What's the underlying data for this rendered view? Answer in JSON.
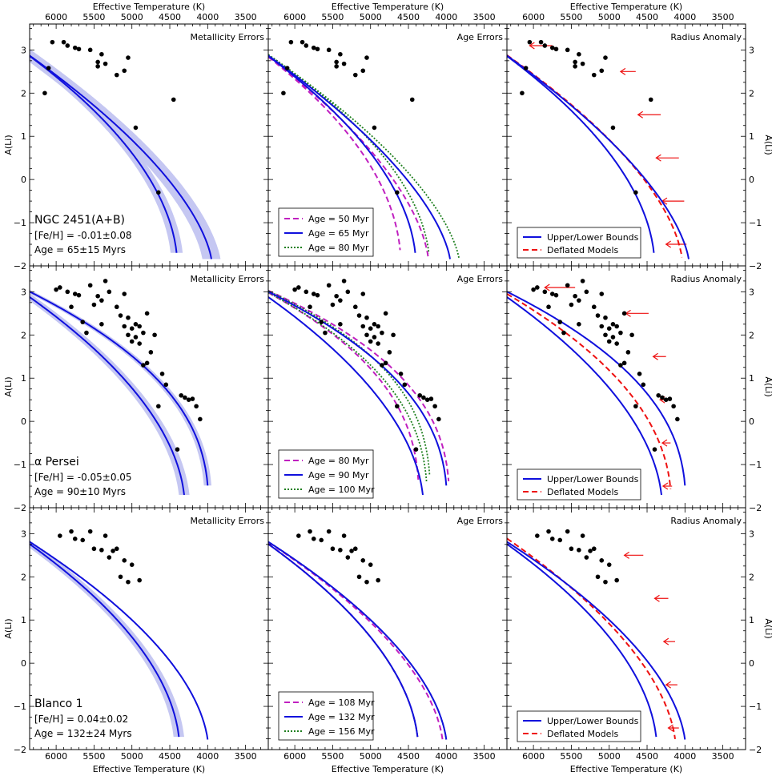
{
  "chart_data": {
    "type": "line",
    "xlabel": "Effective Temperature (K)",
    "ylabel": "A(Li)",
    "xlim": [
      6350,
      3200
    ],
    "ylim": [
      -2,
      3.6
    ],
    "xticks": [
      6000,
      5500,
      5000,
      4500,
      4000,
      3500
    ],
    "yticks": [
      -2,
      -1,
      0,
      1,
      2,
      3
    ],
    "column_titles": [
      "Metallicity Errors",
      "Age Errors",
      "Radius Anomaly"
    ],
    "colors": {
      "band": "#c5c7f2",
      "blue": "#1010dd",
      "magenta": "#c020c0",
      "green": "#208020",
      "red": "#ee1111"
    },
    "legend_radius": [
      "Upper/Lower Bounds",
      "Deflated Models"
    ],
    "clusters": [
      {
        "name": "NGC 2451(A+B)",
        "feh": "[Fe/H] = -0.01±0.08",
        "age": "Age = 65±15 Myrs",
        "ages": [
          "Age = 50 Myr",
          "Age = 65 Myr",
          "Age = 80 Myr"
        ],
        "stars": [
          [
            6150,
            2.0
          ],
          [
            6100,
            2.58
          ],
          [
            6050,
            3.18
          ],
          [
            5900,
            3.18
          ],
          [
            5850,
            3.1
          ],
          [
            5750,
            3.05
          ],
          [
            5700,
            3.02
          ],
          [
            5550,
            3.0
          ],
          [
            5450,
            2.62
          ],
          [
            5450,
            2.72
          ],
          [
            5400,
            2.9
          ],
          [
            5350,
            2.68
          ],
          [
            5200,
            2.42
          ],
          [
            5100,
            2.52
          ],
          [
            5050,
            2.82
          ],
          [
            4950,
            1.2
          ],
          [
            4650,
            -0.3
          ],
          [
            4450,
            1.85
          ]
        ],
        "hot": {
          "T0": 4400,
          "Tm": 6700,
          "Amax": 3.3,
          "p": 1.9,
          "Ts": 2400,
          "Asat": 3.3,
          "w": 80
        },
        "cool": {
          "T0": 3940,
          "Tm": 6700,
          "Amax": 3.3,
          "p": 1.6,
          "Ts": 4600,
          "Asat": 3.3,
          "w": 120
        },
        "hotA": {
          "T0": 4600,
          "Tm": 6700,
          "Amax": 3.3,
          "p": 2.0,
          "Ts": 2300,
          "Asat": 3.3
        },
        "coolA": {
          "T0": 4230,
          "Tm": 6700,
          "Amax": 3.3,
          "p": 1.7,
          "Ts": 2300,
          "Asat": 3.3
        },
        "hotC": {
          "T0": 4220,
          "Tm": 6700,
          "Amax": 3.3,
          "p": 1.9,
          "Ts": 2400,
          "Asat": 3.3
        },
        "coolC": {
          "T0": 3820,
          "Tm": 6700,
          "Amax": 3.3,
          "p": 1.6,
          "Ts": 4600,
          "Asat": 3.3
        },
        "deflated": {
          "T0": 4030,
          "Tm": 6700,
          "Amax": 3.3,
          "p": 1.7,
          "Ts": 2200,
          "Asat": 3.3
        },
        "arrows": [
          [
            3.1,
            5750,
            6050
          ],
          [
            2.5,
            4650,
            4850
          ],
          [
            1.5,
            4320,
            4620
          ],
          [
            0.5,
            4080,
            4380
          ],
          [
            -0.5,
            4010,
            4300
          ],
          [
            -1.5,
            3980,
            4250
          ]
        ]
      },
      {
        "name": "α Persei",
        "feh": "[Fe/H] = -0.05±0.05",
        "age": "Age = 90±10 Myrs",
        "ages": [
          "Age = 80 Myr",
          "Age = 90 Myr",
          "Age = 100 Myr"
        ],
        "stars": [
          [
            6000,
            3.05
          ],
          [
            5950,
            3.1
          ],
          [
            5850,
            3.0
          ],
          [
            5800,
            2.65
          ],
          [
            5750,
            2.95
          ],
          [
            5700,
            2.92
          ],
          [
            5650,
            2.3
          ],
          [
            5600,
            2.05
          ],
          [
            5550,
            3.15
          ],
          [
            5500,
            2.7
          ],
          [
            5450,
            2.9
          ],
          [
            5400,
            2.25
          ],
          [
            5400,
            2.8
          ],
          [
            5350,
            3.25
          ],
          [
            5300,
            3.0
          ],
          [
            5200,
            2.65
          ],
          [
            5150,
            2.45
          ],
          [
            5100,
            2.95
          ],
          [
            5100,
            2.2
          ],
          [
            5050,
            2.0
          ],
          [
            5050,
            2.4
          ],
          [
            5000,
            2.15
          ],
          [
            5000,
            1.85
          ],
          [
            4950,
            2.25
          ],
          [
            4950,
            1.95
          ],
          [
            4900,
            2.2
          ],
          [
            4900,
            1.8
          ],
          [
            4850,
            1.3
          ],
          [
            4850,
            2.05
          ],
          [
            4800,
            1.35
          ],
          [
            4800,
            2.5
          ],
          [
            4750,
            1.6
          ],
          [
            4700,
            2.0
          ],
          [
            4650,
            0.35
          ],
          [
            4600,
            1.1
          ],
          [
            4550,
            0.85
          ],
          [
            4400,
            -0.65
          ],
          [
            4350,
            0.6
          ],
          [
            4300,
            0.55
          ],
          [
            4250,
            0.5
          ],
          [
            4200,
            0.52
          ],
          [
            4150,
            0.35
          ],
          [
            4100,
            0.05
          ]
        ],
        "hot": {
          "T0": 4300,
          "Tm": 6700,
          "Amax": 3.3,
          "p": 1.9,
          "Ts": 2800,
          "Asat": 3.3,
          "w": 70
        },
        "cool": {
          "T0": 3990,
          "Tm": 6700,
          "Amax": 3.3,
          "p": 2.4,
          "Ts": 5000,
          "Asat": 3.3,
          "w": 50
        },
        "hotA": {
          "T0": 4360,
          "Tm": 6700,
          "Amax": 3.3,
          "p": 2.6,
          "Ts": 2800,
          "Asat": 3.3
        },
        "coolA": {
          "T0": 3960,
          "Tm": 6700,
          "Amax": 3.3,
          "p": 2.6,
          "Ts": 5000,
          "Asat": 3.3
        },
        "hotC": {
          "T0": 4250,
          "Tm": 6700,
          "Amax": 3.3,
          "p": 2.5,
          "Ts": 2800,
          "Asat": 3.3
        },
        "coolC": {
          "T0": 4210,
          "Tm": 6700,
          "Amax": 3.3,
          "p": 2.8,
          "Ts": 5000,
          "Asat": 3.3
        },
        "deflated": {
          "T0": 4180,
          "Tm": 6700,
          "Amax": 3.3,
          "p": 2.2,
          "Ts": 2400,
          "Asat": 3.3
        },
        "arrows": [
          [
            3.1,
            5450,
            5850
          ],
          [
            2.5,
            4480,
            4780
          ],
          [
            1.5,
            4250,
            4420
          ],
          [
            0.5,
            4200,
            4330
          ],
          [
            -0.5,
            4190,
            4300
          ],
          [
            -1.5,
            4170,
            4290
          ]
        ]
      },
      {
        "name": "Blanco 1",
        "feh": "[Fe/H] = 0.04±0.02",
        "age": "Age = 132±24 Myrs",
        "ages": [
          "Age = 108 Myr",
          "Age = 132 Myr",
          "Age = 156 Myr"
        ],
        "stars": [
          [
            5950,
            2.95
          ],
          [
            5800,
            3.05
          ],
          [
            5750,
            2.88
          ],
          [
            5650,
            2.85
          ],
          [
            5550,
            3.05
          ],
          [
            5500,
            2.65
          ],
          [
            5400,
            2.62
          ],
          [
            5350,
            2.95
          ],
          [
            5300,
            2.45
          ],
          [
            5250,
            2.6
          ],
          [
            5200,
            2.65
          ],
          [
            5150,
            2.0
          ],
          [
            5100,
            2.38
          ],
          [
            5050,
            1.88
          ],
          [
            5000,
            2.28
          ],
          [
            4900,
            1.92
          ]
        ],
        "hot": {
          "T0": 4370,
          "Tm": 6800,
          "Amax": 3.3,
          "p": 1.9,
          "Ts": 2700,
          "Asat": 3.3,
          "w": 70
        },
        "cool": {
          "T0": 3990,
          "Tm": 6800,
          "Amax": 3.3,
          "p": 1.8,
          "Ts": 4900,
          "Asat": 3.3,
          "w": 0
        },
        "hotA": {
          "T0": 4370,
          "Tm": 6800,
          "Amax": 3.3,
          "p": 1.9,
          "Ts": 2700,
          "Asat": 3.3
        },
        "coolA": {
          "T0": 4040,
          "Tm": 6800,
          "Amax": 3.3,
          "p": 1.8,
          "Ts": 4900,
          "Asat": 3.3
        },
        "hotC": {
          "T0": 4370,
          "Tm": 6800,
          "Amax": 3.3,
          "p": 1.9,
          "Ts": 2700,
          "Asat": 3.3
        },
        "coolC": {
          "T0": 3990,
          "Tm": 6800,
          "Amax": 3.3,
          "p": 1.8,
          "Ts": 4900,
          "Asat": 3.3
        },
        "deflated": {
          "T0": 4120,
          "Tm": 6700,
          "Amax": 3.3,
          "p": 1.8,
          "Ts": 2200,
          "Asat": 3.3
        },
        "arrows": [
          [
            2.5,
            4550,
            4800
          ],
          [
            1.5,
            4220,
            4400
          ],
          [
            0.5,
            4130,
            4280
          ],
          [
            -0.5,
            4100,
            4250
          ],
          [
            -1.5,
            4080,
            4220
          ]
        ]
      }
    ]
  }
}
